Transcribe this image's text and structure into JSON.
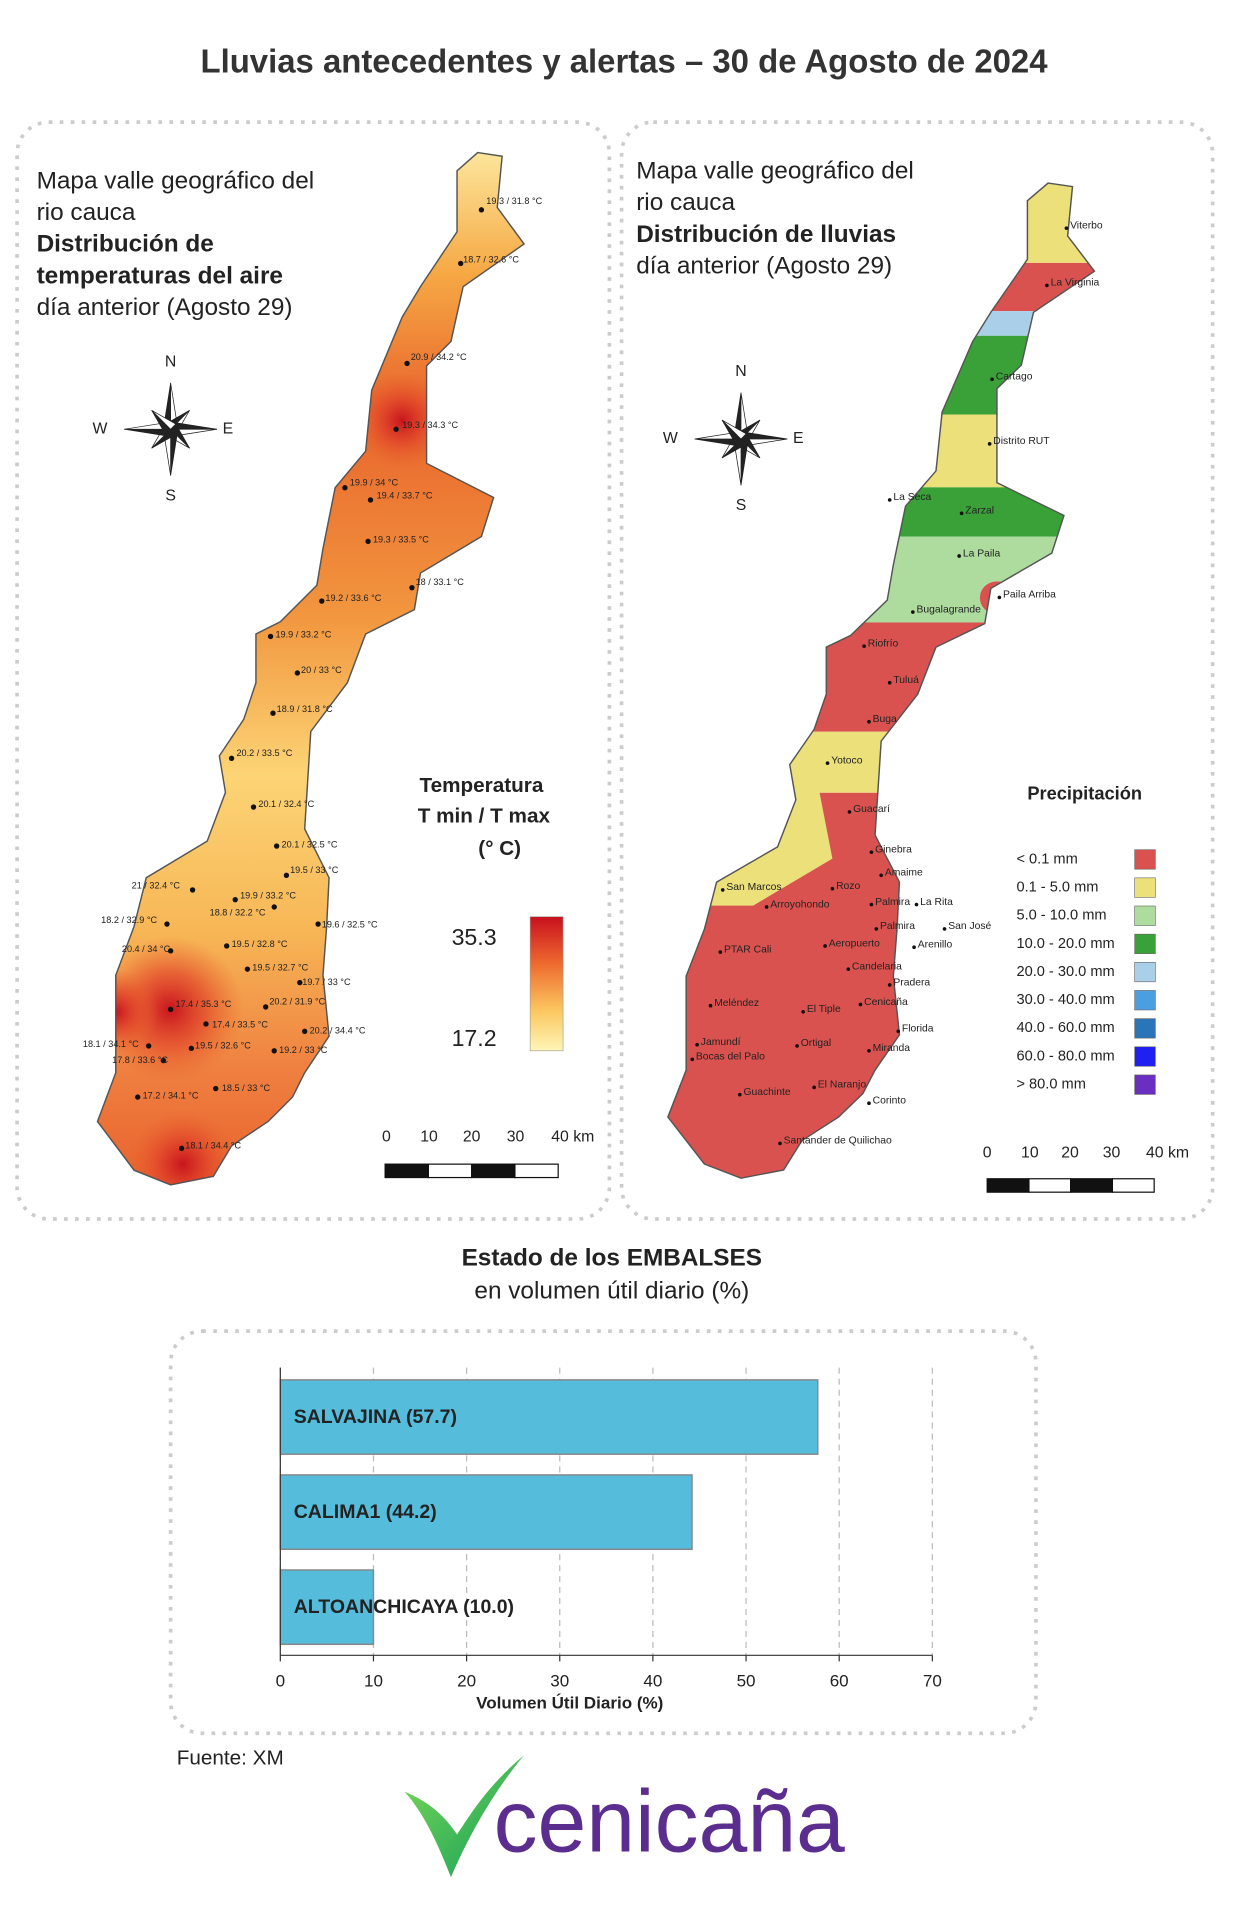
{
  "title": "Lluvias antecedentes y alertas – 30 de Agosto de 2024",
  "temperature_map": {
    "title_lines": [
      "Mapa valle geográfico del",
      "rio cauca",
      "Distribución de",
      "temperaturas del aire",
      "día anterior (Agosto 29)"
    ],
    "compass": [
      "N",
      "S",
      "E",
      "W"
    ],
    "legend_title": [
      "Temperatura",
      "T min / T max",
      "(° C)"
    ],
    "legend_max": 35.3,
    "legend_min": 17.2,
    "scale_labels": [
      "0",
      "10",
      "20",
      "30",
      "40 km"
    ],
    "stations": [
      "19.3 / 31.8 °C",
      "18.7 / 32.6 °C",
      "20.9 / 34.2 °C",
      "19.3 / 34.3 °C",
      "19.9 / 34 °C",
      "19.4 / 33.7 °C",
      "19.3 / 33.5 °C",
      "18 / 33.1 °C",
      "19.2 / 33.6 °C",
      "19.9 / 33.2 °C",
      "20 / 33 °C",
      "18.9 / 31.8 °C",
      "20.2 / 33.5 °C",
      "20.1 / 32.4 °C",
      "20.1 / 32.5 °C",
      "19.5 / 33 °C",
      "21 / 32.4 °C",
      "19.9 / 33.2 °C",
      "18.8 / 32.2 °C",
      "18.2 / 32.9 °C",
      "19.6 / 32.5 °C",
      "20.4 / 34 °C",
      "19.5 / 32.8 °C",
      "19.5 / 32.7 °C",
      "19.7 / 33 °C",
      "17.4 / 35.3 °C",
      "20.2 / 31.9 °C",
      "17.4 / 33.5 °C",
      "20.2 / 34.4 °C",
      "18.1 / 34.1 °C",
      "19.5 / 32.6 °C",
      "19.2 / 33 °C",
      "17.8 / 33.6 °C",
      "18.5 / 33 °C",
      "17.2 / 34.1 °C",
      "18.1 / 34.4 °C"
    ]
  },
  "rain_map": {
    "title_lines": [
      "Mapa valle geográfico del",
      "rio cauca",
      "Distribución de lluvias",
      "día anterior (Agosto 29)"
    ],
    "compass": [
      "N",
      "S",
      "E",
      "W"
    ],
    "legend_title": "Precipitación",
    "legend": [
      {
        "label": "< 0.1 mm",
        "color": "#d9524f"
      },
      {
        "label": "0.1 - 5.0 mm",
        "color": "#ece07a"
      },
      {
        "label": "5.0 - 10.0 mm",
        "color": "#aedc9e"
      },
      {
        "label": "10.0 - 20.0 mm",
        "color": "#3aa038"
      },
      {
        "label": "20.0 - 30.0 mm",
        "color": "#a9d0e8"
      },
      {
        "label": "30.0 - 40.0 mm",
        "color": "#4b9fe0"
      },
      {
        "label": "40.0 - 60.0 mm",
        "color": "#2a75b8"
      },
      {
        "label": "60.0 - 80.0 mm",
        "color": "#2020f0"
      },
      {
        "label": "> 80.0 mm",
        "color": "#6a2fc0"
      }
    ],
    "scale_labels": [
      "0",
      "10",
      "20",
      "30",
      "40 km"
    ],
    "places": [
      "Viterbo",
      "La Virginia",
      "Cartago",
      "Distrito RUT",
      "La Seca",
      "Zarzal",
      "La Paila",
      "Paila Arriba",
      "Bugalagrande",
      "Riofrío",
      "Tuluá",
      "Buga",
      "Yotoco",
      "Guacarí",
      "Ginebra",
      "Amaime",
      "San Marcos",
      "Rozo",
      "Palmira",
      "La Rita",
      "Arroyohondo",
      "Palmira",
      "San José",
      "Arenillo",
      "PTAR Cali",
      "Aeropuerto",
      "Candelaria",
      "Pradera",
      "Cenicaña",
      "Meléndez",
      "El Tiple",
      "Florida",
      "Jamundí",
      "Bocas del Palo",
      "Ortigal",
      "Miranda",
      "El Naranjo",
      "Guachinte",
      "Corinto",
      "Santander de Quilichao"
    ]
  },
  "chart_data": {
    "type": "bar",
    "orientation": "horizontal",
    "title": "Estado de los EMBALSES",
    "subtitle": "en volumen útil diario (%)",
    "values": [
      57.7,
      44.2,
      10.0
    ],
    "value_labels": [
      "SALVAJINA (57.7)",
      "CALIMA1 (44.2)",
      "ALTOANCHICAYA (10.0)"
    ],
    "color": "#56bcdc",
    "xlim": [
      0,
      70
    ],
    "xticks": [
      0,
      10,
      20,
      30,
      40,
      50,
      60,
      70
    ],
    "xlabel": "Volumen Útil Diario (%)",
    "grid": true
  },
  "source": "Fuente: XM",
  "logo": "cenicaña"
}
